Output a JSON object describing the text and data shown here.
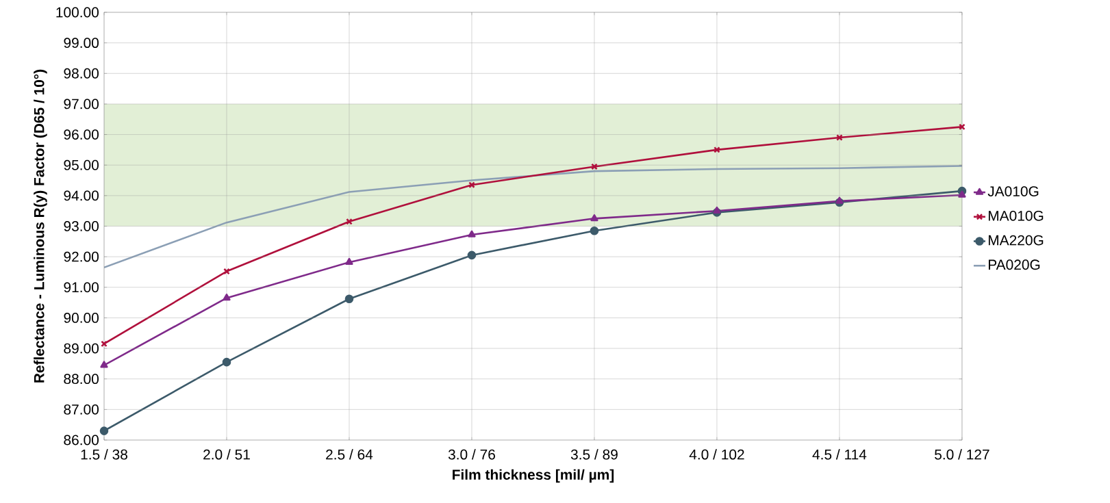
{
  "chart_data": {
    "type": "line",
    "xlabel": "Film thickness [mil/ µm]",
    "ylabel": "Reflectance - Luminous R(y) Factor (D65 /  10°)",
    "categories": [
      "1.5 / 38",
      "2.0 / 51",
      "2.5 / 64",
      "3.0 / 76",
      "3.5 / 89",
      "4.0 / 102",
      "4.5 / 114",
      "5.0 / 127"
    ],
    "series": [
      {
        "name": "JA010G",
        "color": "#7f2a8a",
        "marker": "triangle",
        "values": [
          88.45,
          90.65,
          91.82,
          92.72,
          93.25,
          93.5,
          93.82,
          94.02
        ]
      },
      {
        "name": "MA010G",
        "color": "#b0103c",
        "marker": "cross",
        "values": [
          89.15,
          91.52,
          93.15,
          94.35,
          94.95,
          95.5,
          95.9,
          96.25
        ]
      },
      {
        "name": "MA220G",
        "color": "#3c5a6a",
        "marker": "circle",
        "values": [
          86.3,
          88.55,
          90.62,
          92.05,
          92.85,
          93.45,
          93.78,
          94.15
        ]
      },
      {
        "name": "PA020G",
        "color": "#8b9fb5",
        "marker": "none",
        "values": [
          91.65,
          93.12,
          94.12,
          94.5,
          94.8,
          94.87,
          94.9,
          94.97
        ]
      }
    ],
    "ylim": [
      86,
      100
    ],
    "yticks": [
      {
        "value": 86,
        "label": "86.00"
      },
      {
        "value": 87,
        "label": "87.00"
      },
      {
        "value": 88,
        "label": "88.00"
      },
      {
        "value": 89,
        "label": "89.00"
      },
      {
        "value": 90,
        "label": "90.00"
      },
      {
        "value": 91,
        "label": "91.00"
      },
      {
        "value": 92,
        "label": "92.00"
      },
      {
        "value": 93,
        "label": "93.00"
      },
      {
        "value": 94,
        "label": "94.00"
      },
      {
        "value": 95,
        "label": "95.00"
      },
      {
        "value": 96,
        "label": "96.00"
      },
      {
        "value": 97,
        "label": "97.00"
      },
      {
        "value": 98,
        "label": "98.00"
      },
      {
        "value": 99,
        "label": "99.00"
      },
      {
        "value": 100,
        "label": "100.00"
      }
    ],
    "bands": [
      {
        "axis": "y",
        "from": 93,
        "to": 97,
        "color": "#e2efd6"
      }
    ],
    "grid": true,
    "legend": "right",
    "line_style": "solid"
  }
}
